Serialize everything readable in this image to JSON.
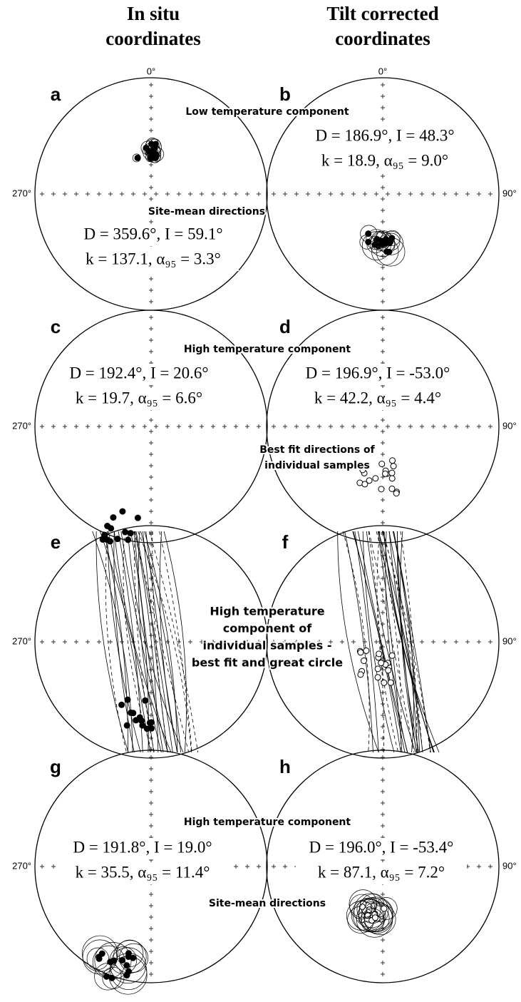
{
  "headers": {
    "left": [
      "In situ",
      "coordinates"
    ],
    "right": [
      "Tilt corrected",
      "coordinates"
    ]
  },
  "rows": [
    {
      "panels": [
        {
          "label": "a",
          "north": "0°",
          "side": "270°",
          "stats": [
            "D = 359.6°, I = 59.1°",
            "k = 137.1, α₉₅ = 3.3°"
          ]
        },
        {
          "label": "b",
          "north": "0°",
          "side": "90°",
          "stats": [
            "D = 186.9°, I = 48.3°",
            "k = 18.9, α₉₅ = 9.0°"
          ]
        }
      ],
      "captions": [
        "Low temperature component",
        "Site-mean directions"
      ]
    },
    {
      "panels": [
        {
          "label": "c",
          "side": "270°",
          "stats": [
            "D = 192.4°, I = 20.6°",
            "k = 19.7, α₉₅ = 6.6°"
          ]
        },
        {
          "label": "d",
          "side": "90°",
          "stats": [
            "D = 196.9°, I = -53.0°",
            "k = 42.2, α₉₅ = 4.4°"
          ]
        }
      ],
      "captions": [
        "High temperature component",
        "Best fit directions of",
        "individual samples"
      ]
    },
    {
      "panels": [
        {
          "label": "e",
          "side": "270°"
        },
        {
          "label": "f",
          "side": "90°"
        }
      ],
      "captions": [
        "High temperature",
        "component of",
        "individual samples -",
        "best fit and great circle"
      ]
    },
    {
      "panels": [
        {
          "label": "g",
          "side": "270°",
          "stats": [
            "D = 191.8°, I = 19.0°",
            "k = 35.5, α₉₅ = 11.4°"
          ]
        },
        {
          "label": "h",
          "side": "90°",
          "stats": [
            "D = 196.0°, I = -53.4°",
            "k = 87.1, α₉₅ = 7.2°"
          ]
        }
      ],
      "captions": [
        "High temperature component",
        "Site-mean directions"
      ]
    }
  ]
}
